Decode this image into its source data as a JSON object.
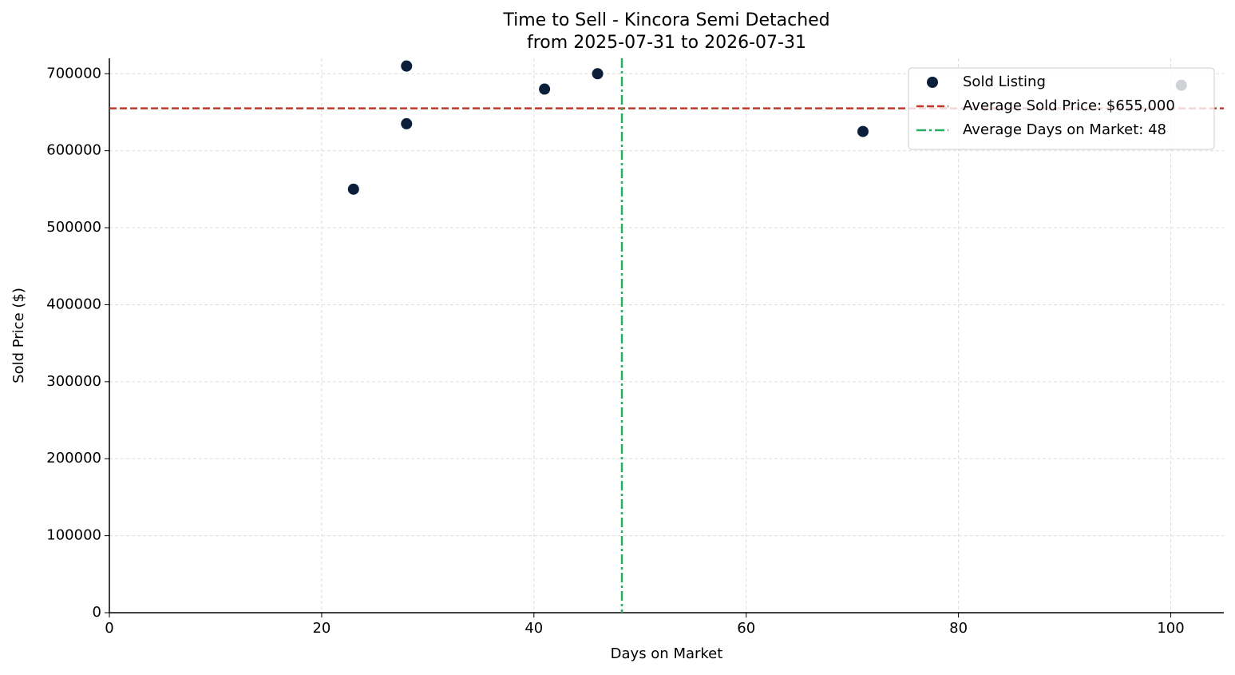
{
  "chart_data": {
    "type": "scatter",
    "title": "Time to Sell - Kincora Semi Detached",
    "subtitle": "from 2025-07-31 to 2026-07-31",
    "x_label": "Days on Market",
    "y_label": "Sold Price ($)",
    "series": [
      {
        "name": "Sold Listing",
        "color": "#0b1f3a",
        "x": [
          23,
          28,
          28,
          41,
          46,
          71,
          101
        ],
        "values": [
          550000,
          710000,
          635000,
          680000,
          700000,
          625000,
          685000
        ]
      }
    ],
    "reference_lines": [
      {
        "name": "Average Sold Price: $655,000",
        "axis": "y",
        "value": 655000,
        "color": "#c0392b",
        "style": "dashed"
      },
      {
        "name": "Average Days on Market: 48",
        "axis": "x",
        "value": 48.29,
        "color": "#27ae60",
        "style": "dashdot"
      }
    ],
    "xlim": [
      0,
      105
    ],
    "xticks": [
      0,
      20,
      40,
      60,
      80,
      100
    ],
    "ylim": [
      0,
      720000
    ],
    "yticks": [
      0,
      100000,
      200000,
      300000,
      400000,
      500000,
      600000,
      700000
    ],
    "grid": true,
    "legend": "upper right"
  }
}
